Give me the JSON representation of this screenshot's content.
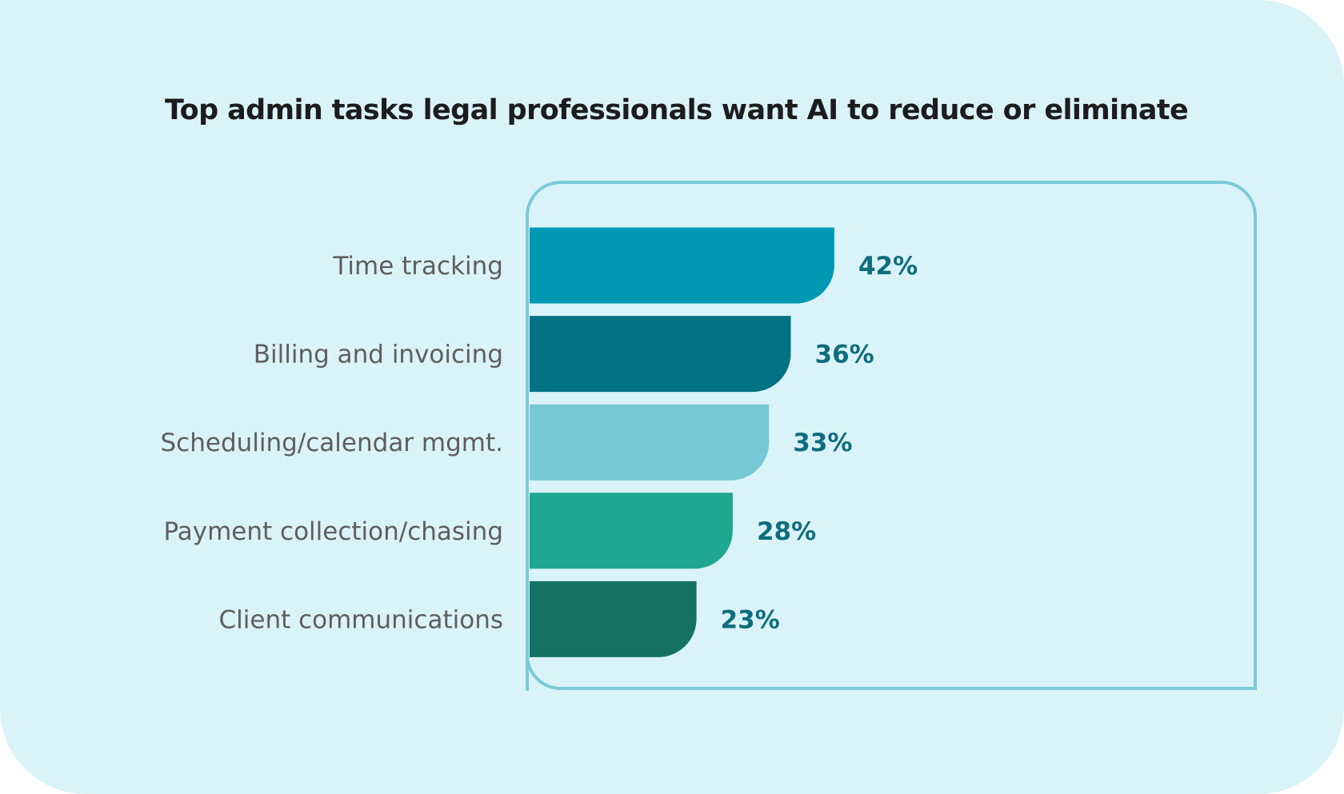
{
  "chart_data": {
    "type": "bar",
    "orientation": "horizontal",
    "title": "Top admin tasks legal professionals want AI to reduce or eliminate",
    "categories": [
      "Time tracking",
      "Billing and invoicing",
      "Scheduling/calendar mgmt.",
      "Payment collection/chasing",
      "Client communications"
    ],
    "values": [
      42,
      36,
      33,
      28,
      23
    ],
    "value_labels": [
      "42%",
      "36%",
      "33%",
      "28%",
      "23%"
    ],
    "unit": "%",
    "colors": [
      "#0099b3",
      "#017384",
      "#76c9d4",
      "#1fa890",
      "#157262"
    ],
    "label_color": "#0e6d7d",
    "frame_color": "#7acbd7",
    "background": "#daf3f8",
    "legend": "none",
    "grid": false
  }
}
